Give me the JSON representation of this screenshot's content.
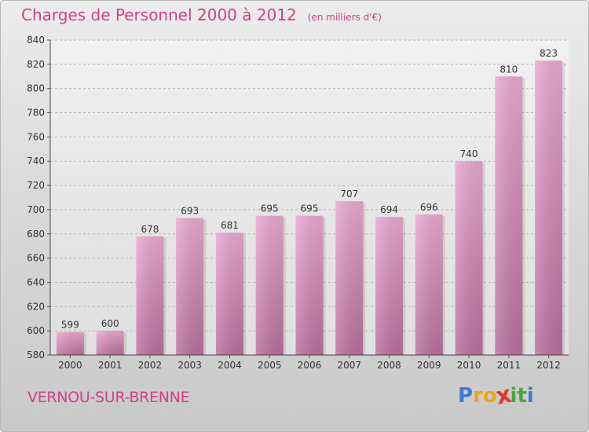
{
  "chart_data": {
    "type": "bar",
    "title": "Charges de Personnel 2000 à 2012",
    "subtitle": "(en milliers d'€)",
    "categories": [
      "2000",
      "2001",
      "2002",
      "2003",
      "2004",
      "2005",
      "2006",
      "2007",
      "2008",
      "2009",
      "2010",
      "2011",
      "2012"
    ],
    "values": [
      599,
      600,
      678,
      693,
      681,
      695,
      695,
      707,
      694,
      696,
      740,
      810,
      823
    ],
    "data_labels": [
      "599",
      "600",
      "678",
      "693",
      "681",
      "695",
      "695",
      "707",
      "694",
      "696",
      "740",
      "810",
      "823"
    ],
    "ylim": [
      580,
      840
    ],
    "yticks": [
      "580",
      "600",
      "620",
      "640",
      "660",
      "680",
      "700",
      "720",
      "740",
      "760",
      "780",
      "800",
      "820",
      "840"
    ],
    "grid": true,
    "bar_color": "#d985b5"
  },
  "footer": {
    "location": "VERNOU-SUR-BRENNE",
    "logo_letters": [
      {
        "ch": "P",
        "color": "#3b7ad9"
      },
      {
        "ch": "r",
        "color": "#e8a51b"
      },
      {
        "ch": "o",
        "color": "#e8a51b"
      },
      {
        "ch": "x",
        "color": "#dd3b2f"
      },
      {
        "ch": "i",
        "color": "#49a83b"
      },
      {
        "ch": "t",
        "color": "#49a83b"
      },
      {
        "ch": "i",
        "color": "#3b7ad9"
      }
    ]
  }
}
